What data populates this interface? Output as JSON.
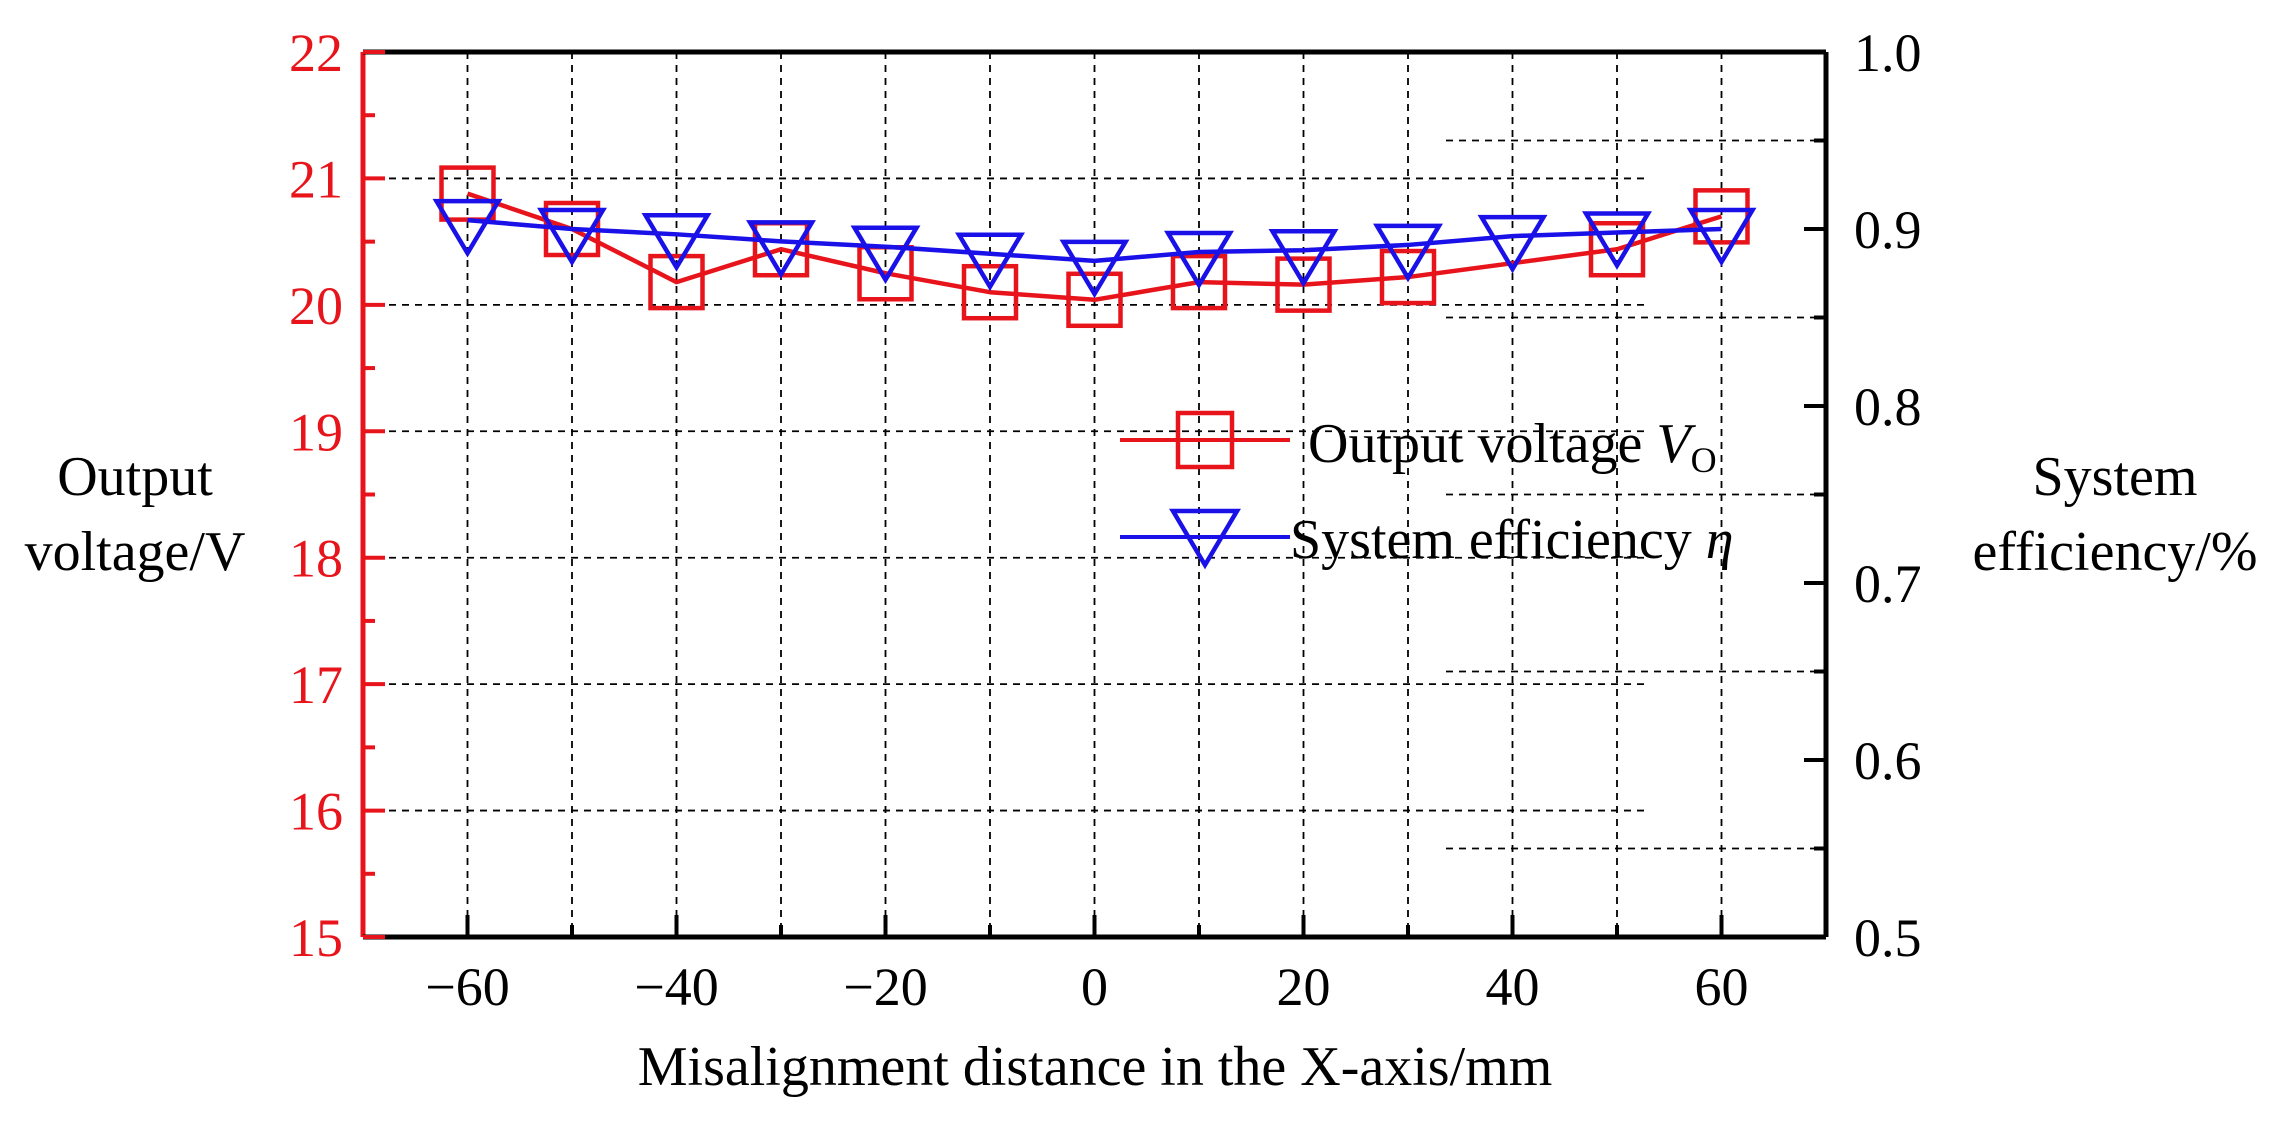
{
  "chart_data": {
    "type": "line",
    "xlabel": "Misalignment distance in the X-axis/mm",
    "ylabel_left": [
      "Output",
      "voltage/V"
    ],
    "ylabel_right": [
      "System",
      "efficiency/%"
    ],
    "x": [
      -60,
      -50,
      -40,
      -30,
      -20,
      -10,
      0,
      10,
      20,
      30,
      40,
      50,
      60
    ],
    "x_ticks": [
      "−60",
      "−40",
      "−20",
      "0",
      "20",
      "40",
      "60"
    ],
    "xlim": [
      -70,
      70
    ],
    "ylim_left": [
      15,
      22
    ],
    "ylim_right": [
      0.5,
      1.0
    ],
    "yticks_left": [
      "15",
      "16",
      "17",
      "18",
      "19",
      "20",
      "21",
      "22"
    ],
    "yticks_right": [
      "0.5",
      "0.6",
      "0.7",
      "0.8",
      "0.9",
      "1.0"
    ],
    "grid": true,
    "legend_position": "right-center",
    "series": [
      {
        "name": "Output voltage V_O",
        "legend_main": "Output voltage ",
        "legend_var": "V",
        "legend_sub": "O",
        "axis": "left",
        "marker": "square",
        "color": "#e8141b",
        "values": [
          20.88,
          20.6,
          20.18,
          20.44,
          20.25,
          20.1,
          20.04,
          20.18,
          20.16,
          20.22,
          null,
          20.44,
          20.7
        ]
      },
      {
        "name": "System efficiency η",
        "legend_main": "System efficiency ",
        "legend_var": "η",
        "legend_sub": "",
        "axis": "right",
        "marker": "triangle-down",
        "color": "#1a10e8",
        "values": [
          0.905,
          0.9,
          0.897,
          0.893,
          0.89,
          0.886,
          0.882,
          0.887,
          0.888,
          0.891,
          0.896,
          0.898,
          0.9
        ]
      }
    ]
  }
}
